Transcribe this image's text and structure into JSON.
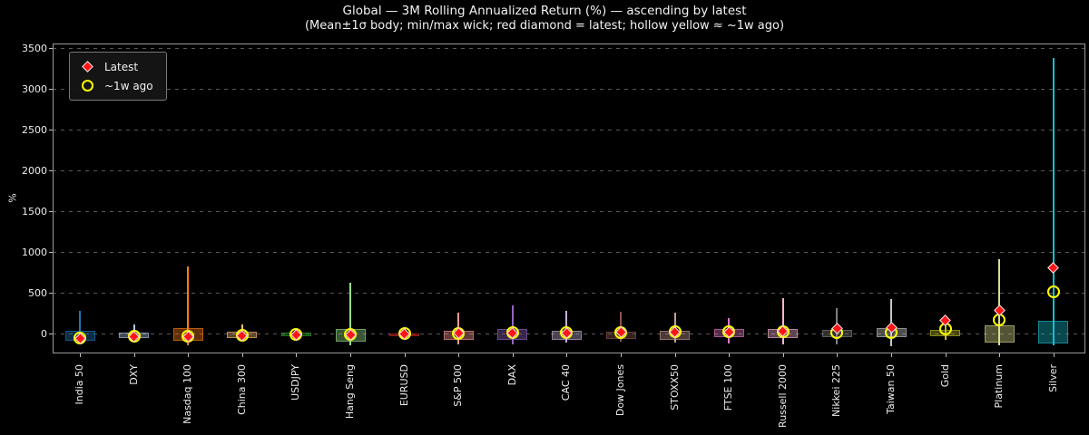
{
  "title": "Global — 3M Rolling Annualized Return (%) — ascending by latest",
  "subtitle": "(Mean±1σ body; min/max wick; red diamond = latest; hollow yellow ≈ ~1w ago)",
  "legend": {
    "latest_label": "Latest",
    "week_ago_label": "~1w ago"
  },
  "colors": {
    "background": "#000000",
    "text": "#f0f0f0",
    "grid": "#585858",
    "spine": "#9a9a9a",
    "latest_marker": "#ff1515",
    "latest_marker_edge": "#ededed",
    "week_ago_marker": "#ffff00"
  },
  "chart_data": {
    "type": "box-wick",
    "description": "Body = mean ± 1 sigma; wick = min/max; red diamond = latest value; hollow yellow circle = ~1 week ago",
    "title": "Global — 3M Rolling Annualized Return (%) — ascending by latest",
    "xlabel": "",
    "ylabel": "%",
    "ylim": [
      -240,
      3560
    ],
    "yticks": [
      0,
      500,
      1000,
      1500,
      2000,
      2500,
      3000,
      3500
    ],
    "grid": "dashed horizontal gridlines",
    "legend_position": "upper left",
    "sort": "ascending by latest",
    "categories": [
      "India 50",
      "DXY",
      "Nasdaq 100",
      "China 300",
      "USDJPY",
      "Hang Seng",
      "EURUSD",
      "S&P 500",
      "DAX",
      "CAC 40",
      "Dow Jones",
      "STOXX50",
      "FTSE 100",
      "Russell 2000",
      "Nikkei 225",
      "Taiwan 50",
      "Gold",
      "Platinum",
      "Silver"
    ],
    "series": [
      {
        "name": "India 50",
        "color": "#1f77b4",
        "mean_minus_1sigma": -85,
        "mean_plus_1sigma": 40,
        "min": -95,
        "max": 280,
        "latest": -55,
        "week_ago": -48
      },
      {
        "name": "DXY",
        "color": "#aec7e8",
        "mean_minus_1sigma": -50,
        "mean_plus_1sigma": 15,
        "min": -65,
        "max": 110,
        "latest": -40,
        "week_ago": -35
      },
      {
        "name": "Nasdaq 100",
        "color": "#ff7f0e",
        "mean_minus_1sigma": -85,
        "mean_plus_1sigma": 75,
        "min": -145,
        "max": 830,
        "latest": -35,
        "week_ago": -30
      },
      {
        "name": "China 300",
        "color": "#ffbb78",
        "mean_minus_1sigma": -55,
        "mean_plus_1sigma": 30,
        "min": -75,
        "max": 120,
        "latest": -25,
        "week_ago": -22
      },
      {
        "name": "USDJPY",
        "color": "#2ca02c",
        "mean_minus_1sigma": -30,
        "mean_plus_1sigma": 15,
        "min": -45,
        "max": 55,
        "latest": -15,
        "week_ago": -12
      },
      {
        "name": "Hang Seng",
        "color": "#98df8a",
        "mean_minus_1sigma": -95,
        "mean_plus_1sigma": 60,
        "min": -140,
        "max": 630,
        "latest": -8,
        "week_ago": -5
      },
      {
        "name": "EURUSD",
        "color": "#d62728",
        "mean_minus_1sigma": -30,
        "mean_plus_1sigma": 5,
        "min": -45,
        "max": 30,
        "latest": 0,
        "week_ago": 2
      },
      {
        "name": "S&P 500",
        "color": "#ff9896",
        "mean_minus_1sigma": -75,
        "mean_plus_1sigma": 40,
        "min": -130,
        "max": 260,
        "latest": 5,
        "week_ago": 8
      },
      {
        "name": "DAX",
        "color": "#9467bd",
        "mean_minus_1sigma": -80,
        "mean_plus_1sigma": 55,
        "min": -125,
        "max": 345,
        "latest": 10,
        "week_ago": 12
      },
      {
        "name": "CAC 40",
        "color": "#c5b0d5",
        "mean_minus_1sigma": -75,
        "mean_plus_1sigma": 40,
        "min": -110,
        "max": 285,
        "latest": 14,
        "week_ago": 15
      },
      {
        "name": "Dow Jones",
        "color": "#8c564b",
        "mean_minus_1sigma": -65,
        "mean_plus_1sigma": 30,
        "min": -100,
        "max": 265,
        "latest": 18,
        "week_ago": 18
      },
      {
        "name": "STOXX50",
        "color": "#c49c94",
        "mean_minus_1sigma": -70,
        "mean_plus_1sigma": 40,
        "min": -110,
        "max": 255,
        "latest": 22,
        "week_ago": 22
      },
      {
        "name": "FTSE 100",
        "color": "#e377c2",
        "mean_minus_1sigma": -45,
        "mean_plus_1sigma": 55,
        "min": -120,
        "max": 190,
        "latest": 26,
        "week_ago": 25
      },
      {
        "name": "Russell 2000",
        "color": "#f7b6d2",
        "mean_minus_1sigma": -50,
        "mean_plus_1sigma": 60,
        "min": -130,
        "max": 435,
        "latest": 32,
        "week_ago": 28
      },
      {
        "name": "Nikkei 225",
        "color": "#7f7f7f",
        "mean_minus_1sigma": -40,
        "mean_plus_1sigma": 45,
        "min": -135,
        "max": 320,
        "latest": 60,
        "week_ago": 12
      },
      {
        "name": "Taiwan 50",
        "color": "#c7c7c7",
        "mean_minus_1sigma": -40,
        "mean_plus_1sigma": 70,
        "min": -150,
        "max": 430,
        "latest": 80,
        "week_ago": 20
      },
      {
        "name": "Gold",
        "color": "#bcbd22",
        "mean_minus_1sigma": -35,
        "mean_plus_1sigma": 45,
        "min": -75,
        "max": 190,
        "latest": 165,
        "week_ago": 60
      },
      {
        "name": "Platinum",
        "color": "#dbdb8d",
        "mean_minus_1sigma": -110,
        "mean_plus_1sigma": 105,
        "min": -140,
        "max": 920,
        "latest": 290,
        "week_ago": 170
      },
      {
        "name": "Silver",
        "color": "#17becf",
        "mean_minus_1sigma": -125,
        "mean_plus_1sigma": 160,
        "min": -140,
        "max": 3380,
        "latest": 815,
        "week_ago": 510
      }
    ]
  }
}
